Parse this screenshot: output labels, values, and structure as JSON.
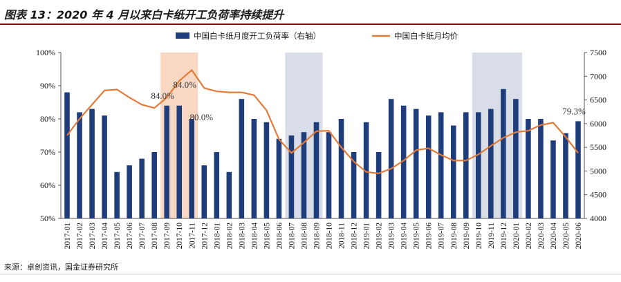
{
  "title": "图表 13：2020 年 4 月以来白卡纸开工负荷率持续提升",
  "source": "来源：卓创资讯，国金证券研究所",
  "chart_data": {
    "type": "bar+line",
    "title": "图表 13：2020 年 4 月以来白卡纸开工负荷率持续提升",
    "categories": [
      "2017-01",
      "2017-02",
      "2017-03",
      "2017-04",
      "2017-05",
      "2017-06",
      "2017-07",
      "2017-08",
      "2017-09",
      "2017-10",
      "2017-11",
      "2017-12",
      "2018-01",
      "2018-02",
      "2018-03",
      "2018-04",
      "2018-05",
      "2018-06",
      "2018-07",
      "2018-08",
      "2018-09",
      "2018-10",
      "2018-11",
      "2018-12",
      "2019-01",
      "2019-02",
      "2019-03",
      "2019-04",
      "2019-05",
      "2019-06",
      "2019-07",
      "2019-08",
      "2019-09",
      "2019-10",
      "2019-11",
      "2019-12",
      "2020-01",
      "2020-02",
      "2020-03",
      "2020-04",
      "2020-05",
      "2020-06"
    ],
    "series": [
      {
        "name": "中国白卡纸月度开工负荷率（右轴）",
        "type": "bar",
        "axis": "left",
        "color": "#1f3d7a",
        "values": [
          88,
          82,
          83,
          81,
          64,
          66,
          68,
          70,
          84,
          84,
          80,
          66,
          70,
          64,
          86,
          80,
          79,
          74,
          75,
          76,
          79,
          76,
          80,
          70,
          79,
          70,
          86,
          84,
          83,
          81,
          82,
          78,
          82,
          82,
          83,
          89,
          86,
          80,
          80,
          73.5,
          75.7,
          79.3
        ]
      },
      {
        "name": "中国白卡纸月均价",
        "type": "line",
        "axis": "right",
        "color": "#e07b39",
        "values": [
          5750,
          6100,
          6400,
          6700,
          6720,
          6550,
          6400,
          6330,
          6550,
          6900,
          7130,
          6750,
          6680,
          6660,
          6660,
          6600,
          6280,
          5670,
          5380,
          5600,
          5840,
          5850,
          5500,
          5200,
          4980,
          4950,
          5050,
          5220,
          5440,
          5480,
          5340,
          5220,
          5220,
          5350,
          5530,
          5700,
          5820,
          5850,
          5970,
          6020,
          5720,
          5380
        ]
      }
    ],
    "left_axis": {
      "min": 50,
      "max": 100,
      "step": 10,
      "tick_labels": [
        "50%",
        "60%",
        "70%",
        "80%",
        "90%",
        "100%"
      ]
    },
    "right_axis": {
      "min": 4000,
      "max": 7500,
      "step": 500,
      "tick_labels": [
        "4000",
        "4500",
        "5000",
        "5500",
        "6000",
        "6500",
        "7000",
        "7500"
      ]
    },
    "highlight_ranges": [
      {
        "from": "2017-09",
        "to": "2017-11",
        "color": "#f8d8c2"
      },
      {
        "from": "2018-07",
        "to": "2018-09",
        "color": "#d9dde8"
      },
      {
        "from": "2019-10",
        "to": "2020-01",
        "color": "#d9dde8"
      }
    ],
    "annotations": [
      {
        "category": "2017-09",
        "text": "84.0%"
      },
      {
        "category": "2017-10",
        "text": "84.0%"
      },
      {
        "category": "2017-11",
        "text": "80.0%"
      },
      {
        "category": "2020-06",
        "text": "79.3%"
      }
    ],
    "legend": {
      "position": "top",
      "items": [
        "中国白卡纸月度开工负荷率（右轴）",
        "中国白卡纸月均价"
      ]
    }
  }
}
